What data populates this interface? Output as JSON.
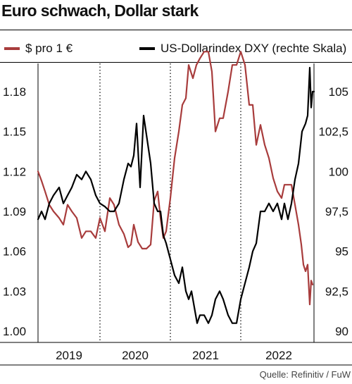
{
  "title": "Euro schwach, Dollar stark",
  "source": "Quelle: Refinitiv / FuW",
  "colors": {
    "eurusd": "#a83c3c",
    "dxy": "#000000",
    "grid": "#000000"
  },
  "chart_data": {
    "type": "line",
    "title": "Euro schwach, Dollar stark",
    "x_labels": [
      "2019",
      "2020",
      "2021",
      "2022"
    ],
    "x_range": [
      2018.5,
      2022.42
    ],
    "y_left": {
      "ticks": [
        "1.18",
        "1.15",
        "1.12",
        "1.09",
        "1.06",
        "1.03",
        "1.00"
      ],
      "tick_values": [
        1.18,
        1.15,
        1.12,
        1.09,
        1.06,
        1.03,
        1.0
      ],
      "range": [
        1.0,
        1.21
      ]
    },
    "y_right": {
      "ticks": [
        "105",
        "102,5",
        "100",
        "97,5",
        "95",
        "92,5",
        "90"
      ],
      "tick_values": [
        105,
        102.5,
        100,
        97.5,
        95,
        92.5,
        90
      ],
      "range": [
        90,
        107
      ]
    },
    "series": [
      {
        "name": "$ pro 1 €",
        "axis": "left",
        "color": "#a83c3c",
        "x": [
          2018.5,
          2018.55,
          2018.6,
          2018.66,
          2018.72,
          2018.8,
          2018.86,
          2018.92,
          2018.98,
          2019.05,
          2019.12,
          2019.18,
          2019.25,
          2019.32,
          2019.38,
          2019.45,
          2019.52,
          2019.58,
          2019.65,
          2019.72,
          2019.78,
          2019.82,
          2019.86,
          2019.92,
          2019.98,
          2020.04,
          2020.1,
          2020.15,
          2020.2,
          2020.24,
          2020.28,
          2020.32,
          2020.38,
          2020.44,
          2020.5,
          2020.55,
          2020.6,
          2020.64,
          2020.7,
          2020.75,
          2020.8,
          2020.86,
          2020.92,
          2020.97,
          2021.02,
          2021.08,
          2021.13,
          2021.2,
          2021.26,
          2021.32,
          2021.38,
          2021.44,
          2021.5,
          2021.55,
          2021.6,
          2021.66,
          2021.72,
          2021.78,
          2021.84,
          2021.9,
          2021.96,
          2022.0,
          2022.05,
          2022.1,
          2022.15,
          2022.2,
          2022.24,
          2022.27,
          2022.3,
          2022.33,
          2022.36,
          2022.38,
          2022.4
        ],
        "y": [
          1.12,
          1.113,
          1.105,
          1.095,
          1.09,
          1.085,
          1.08,
          1.095,
          1.09,
          1.085,
          1.07,
          1.075,
          1.075,
          1.07,
          1.085,
          1.075,
          1.1,
          1.095,
          1.08,
          1.073,
          1.063,
          1.065,
          1.08,
          1.067,
          1.062,
          1.062,
          1.065,
          1.098,
          1.105,
          1.085,
          1.07,
          1.075,
          1.1,
          1.13,
          1.15,
          1.17,
          1.175,
          1.2,
          1.19,
          1.2,
          1.205,
          1.21,
          1.21,
          1.195,
          1.15,
          1.16,
          1.16,
          1.18,
          1.2,
          1.2,
          1.21,
          1.2,
          1.17,
          1.17,
          1.14,
          1.155,
          1.14,
          1.13,
          1.115,
          1.105,
          1.1,
          1.11,
          1.11,
          1.11,
          1.095,
          1.08,
          1.065,
          1.05,
          1.045,
          1.05,
          1.02,
          1.038,
          1.035
        ]
      },
      {
        "name": "US-Dollarindex DXY (rechte Skala)",
        "axis": "right",
        "color": "#000000",
        "x": [
          2018.5,
          2018.55,
          2018.6,
          2018.66,
          2018.72,
          2018.8,
          2018.86,
          2018.92,
          2018.98,
          2019.05,
          2019.12,
          2019.18,
          2019.25,
          2019.32,
          2019.38,
          2019.45,
          2019.52,
          2019.58,
          2019.65,
          2019.72,
          2019.78,
          2019.82,
          2019.86,
          2019.9,
          2019.95,
          2020.0,
          2020.05,
          2020.1,
          2020.15,
          2020.2,
          2020.24,
          2020.28,
          2020.32,
          2020.38,
          2020.44,
          2020.5,
          2020.55,
          2020.6,
          2020.64,
          2020.68,
          2020.72,
          2020.76,
          2020.8,
          2020.86,
          2020.92,
          2020.97,
          2021.02,
          2021.08,
          2021.13,
          2021.2,
          2021.26,
          2021.32,
          2021.38,
          2021.44,
          2021.5,
          2021.55,
          2021.6,
          2021.66,
          2021.72,
          2021.78,
          2021.84,
          2021.9,
          2021.96,
          2022.0,
          2022.05,
          2022.1,
          2022.15,
          2022.2,
          2022.25,
          2022.3,
          2022.33,
          2022.36,
          2022.38,
          2022.4,
          2022.42
        ],
        "y": [
          97.0,
          97.5,
          97.0,
          98.0,
          98.5,
          99.0,
          98.0,
          98.5,
          99.0,
          99.8,
          99.5,
          100.0,
          99.5,
          98.5,
          98.0,
          97.8,
          97.5,
          97.5,
          98.0,
          99.5,
          100.5,
          100.3,
          101.0,
          103.0,
          99.0,
          103.5,
          102.0,
          100.5,
          98.0,
          97.5,
          97.5,
          96.0,
          95.5,
          94.5,
          93.5,
          93.0,
          94.0,
          92.5,
          92.0,
          92.5,
          91.5,
          90.5,
          91.0,
          91.0,
          90.5,
          91.0,
          92.0,
          92.5,
          92.0,
          91.0,
          90.5,
          90.5,
          92.0,
          93.0,
          94.0,
          95.0,
          95.5,
          97.5,
          97.5,
          98.0,
          97.5,
          98.0,
          97.0,
          98.0,
          97.0,
          98.0,
          99.5,
          100.5,
          102.5,
          103.0,
          103.5,
          106.5,
          104.0,
          105.0,
          105.0
        ]
      }
    ],
    "legend": "top",
    "grid": "vertical, year boundaries"
  }
}
